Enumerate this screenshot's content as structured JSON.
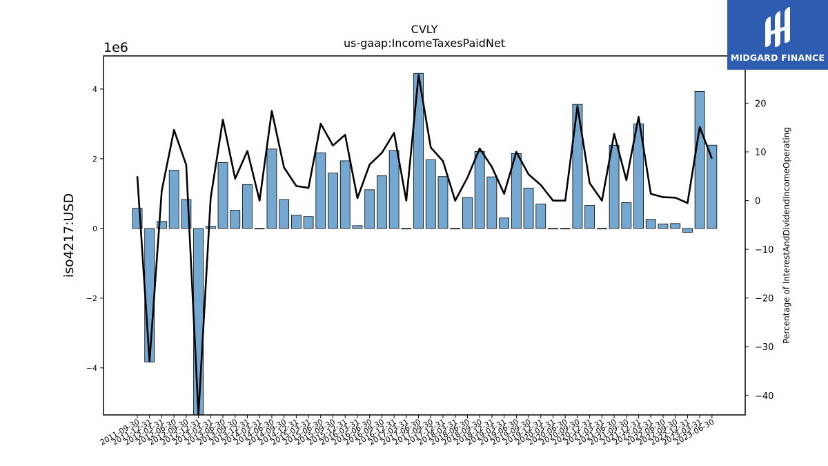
{
  "chart_data": {
    "type": "bar",
    "title": "CVLY",
    "subtitle": "us-gaap:IncomeTaxesPaidNet",
    "ylabel": "iso4217:USD",
    "y_multiplier": "1e6",
    "y2label": "Percentage of InterestAndDividendIncomeOperating",
    "ylim": [
      -5.35,
      4.95
    ],
    "y2lim": [
      -44,
      29.7
    ],
    "yticks": [
      "−4",
      "−2",
      "0",
      "2",
      "4"
    ],
    "y2ticks": [
      "−40",
      "−30",
      "−20",
      "−10",
      "0",
      "10",
      "20"
    ],
    "categories": [
      "2011-09-30",
      "2011-12-31",
      "2012-03-31",
      "2012-06-30",
      "2012-09-30",
      "2012-12-31",
      "2013-03-31",
      "2013-06-30",
      "2013-09-30",
      "2013-12-31",
      "2014-03-31",
      "2014-06-30",
      "2014-09-30",
      "2014-12-31",
      "2015-03-31",
      "2015-06-30",
      "2015-09-30",
      "2015-12-31",
      "2016-03-31",
      "2016-06-30",
      "2016-09-30",
      "2016-12-31",
      "2017-03-31",
      "2017-06-30",
      "2017-09-30",
      "2017-12-31",
      "2018-03-31",
      "2018-06-30",
      "2018-09-30",
      "2018-12-31",
      "2019-03-31",
      "2019-06-30",
      "2019-09-30",
      "2019-12-31",
      "2020-03-31",
      "2020-06-30",
      "2020-09-30",
      "2020-12-31",
      "2021-03-31",
      "2021-06-30",
      "2021-09-30",
      "2021-12-31",
      "2022-03-31",
      "2022-06-30",
      "2022-09-30",
      "2022-12-31",
      "2023-03-31",
      "2023-06-30"
    ],
    "x_tick_labels": [
      "2011-09-30",
      "2011-12-31",
      "2012-03-31",
      "2012-06-30",
      "2012-09-30",
      "2012-12-31",
      "2013-03-31",
      "2013-06-30",
      "2013-09-30",
      "2013-12-31",
      "2014-03-31",
      "2014-06-30",
      "2014-09-30",
      "2014-12-31",
      "2015-03-31",
      "2015-06-30",
      "2015-09-30",
      "2015-12-31",
      "2016-03-31",
      "2016-06-30",
      "2016-09-30",
      "2016-12-31",
      "2017-03-31",
      "2017-06-30",
      "2017-09-30",
      "2017-12-31",
      "2018-03-31",
      "2018-06-30",
      "2018-09-30",
      "2018-12-31",
      "2019-03-31",
      "2019-06-30",
      "2019-09-30",
      "2019-12-31",
      "2020-03-31",
      "2020-06-30",
      "2020-09-30",
      "2020-12-31",
      "2021-03-31",
      "2021-06-30",
      "2021-09-30",
      "2021-12-31",
      "2022-03-31",
      "2022-06-30",
      "2022-09-30",
      "2022-12-31",
      "2023-03-31",
      "2023-06-30"
    ],
    "series": [
      {
        "type": "bar",
        "axis": "left",
        "values": [
          0.58,
          -3.83,
          0.2,
          1.67,
          0.83,
          -5.4,
          0.06,
          1.89,
          0.52,
          1.26,
          0,
          2.28,
          0.83,
          0.38,
          0.34,
          2.17,
          1.59,
          1.94,
          0.08,
          1.11,
          1.51,
          2.24,
          0,
          4.45,
          1.97,
          1.49,
          0,
          0.89,
          2.21,
          1.48,
          0.3,
          2.15,
          1.16,
          0.7,
          0,
          0,
          3.56,
          0.66,
          0,
          2.39,
          0.74,
          3.0,
          0.26,
          0.13,
          0.14,
          -0.11,
          3.93,
          2.39
        ]
      },
      {
        "type": "line",
        "axis": "right",
        "values": [
          5.0,
          -33.0,
          2.0,
          14.5,
          7.3,
          -44.0,
          0.5,
          16.6,
          4.5,
          10.2,
          0,
          18.4,
          6.8,
          3.0,
          2.6,
          15.8,
          11.3,
          13.5,
          0.5,
          7.4,
          9.8,
          13.9,
          0,
          25.8,
          10.9,
          8.1,
          0,
          4.7,
          10.7,
          6.9,
          1.4,
          10.0,
          5.4,
          3.2,
          0,
          0,
          19.4,
          3.6,
          0,
          13.7,
          4.2,
          17.2,
          1.4,
          0.7,
          0.6,
          -0.5,
          15.1,
          8.6
        ]
      }
    ],
    "colors": {
      "bar": "#75a8d1",
      "bar_edge": "#000000",
      "line": "#000000"
    }
  },
  "brand": {
    "name": "MIDGARD FINANCE",
    "color": "#2d5cb0"
  }
}
